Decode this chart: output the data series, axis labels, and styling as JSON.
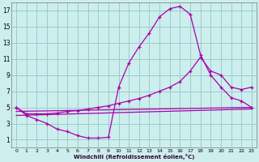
{
  "xlabel": "Windchill (Refroidissement éolien,°C)",
  "bg_color": "#cceeed",
  "line_color": "#aa00aa",
  "grid_color": "#99cccc",
  "xlim": [
    -0.5,
    23.5
  ],
  "ylim": [
    0,
    18
  ],
  "xticks": [
    0,
    1,
    2,
    3,
    4,
    5,
    6,
    7,
    8,
    9,
    10,
    11,
    12,
    13,
    14,
    15,
    16,
    17,
    18,
    19,
    20,
    21,
    22,
    23
  ],
  "yticks": [
    1,
    3,
    5,
    7,
    9,
    11,
    13,
    15,
    17
  ],
  "line1_x": [
    0,
    1,
    2,
    3,
    4,
    5,
    6,
    7,
    8,
    9,
    10,
    11,
    12,
    13,
    14,
    15,
    16,
    17,
    18,
    19,
    20,
    21,
    22,
    23
  ],
  "line1_y": [
    5.0,
    4.0,
    3.5,
    3.0,
    2.3,
    2.0,
    1.5,
    1.2,
    1.2,
    1.3,
    7.5,
    10.5,
    12.5,
    14.2,
    16.2,
    17.2,
    17.5,
    16.5,
    11.5,
    9.0,
    7.5,
    6.2,
    5.8,
    5.0
  ],
  "line2_x": [
    0,
    1,
    2,
    3,
    4,
    5,
    6,
    7,
    8,
    9,
    10,
    11,
    12,
    13,
    14,
    15,
    16,
    17,
    18,
    19,
    20,
    21,
    22,
    23
  ],
  "line2_y": [
    5.0,
    4.2,
    4.2,
    4.2,
    4.3,
    4.5,
    4.6,
    4.8,
    5.0,
    5.2,
    5.5,
    5.8,
    6.1,
    6.5,
    7.0,
    7.5,
    8.2,
    9.5,
    11.2,
    9.5,
    9.0,
    7.5,
    7.2,
    7.5
  ],
  "line3_x": [
    0,
    23
  ],
  "line3_y": [
    4.5,
    5.0
  ],
  "line4_x": [
    0,
    23
  ],
  "line4_y": [
    4.0,
    4.8
  ]
}
